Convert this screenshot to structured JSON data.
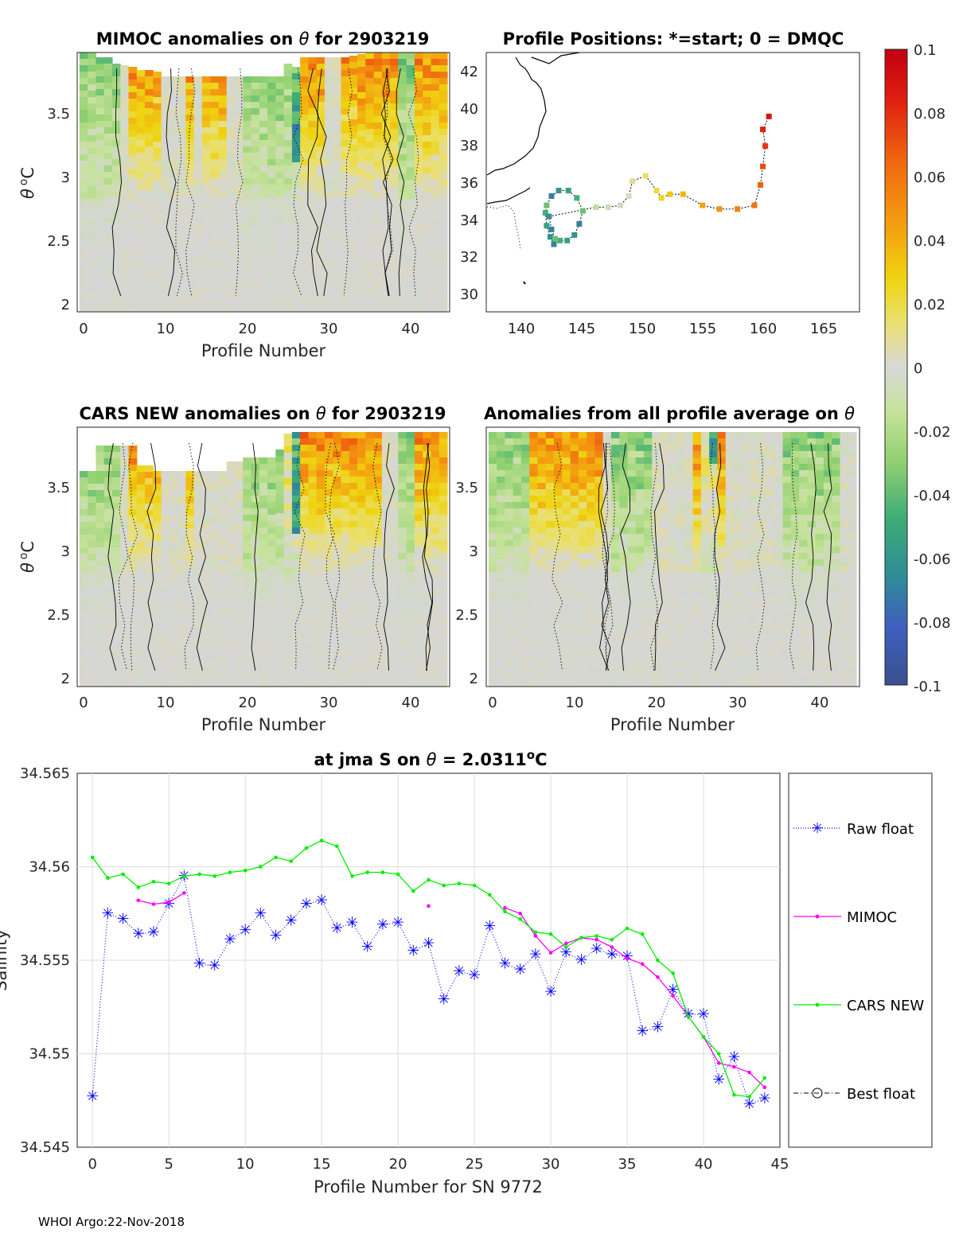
{
  "footer": "WHOI Argo:22-Nov-2018",
  "colors": {
    "raw": "#0000ff",
    "mimoc": "#ff00ff",
    "cars": "#00ee00",
    "best": "#000000",
    "grid": "#dddddd",
    "grey": "#d6d6d6"
  },
  "colorbar": {
    "ticks": [
      "0.1",
      "0.08",
      "0.06",
      "0.04",
      "0.02",
      "0",
      "-0.02",
      "-0.04",
      "-0.06",
      "-0.08",
      "-0.1"
    ]
  },
  "panels": {
    "mimoc": {
      "title_prefix": "MIMOC anomalies on ",
      "title_theta": "θ",
      "title_suffix": "  for 2903219",
      "ylabel_theta": "θ",
      "ylabel_unit": "C",
      "xlabel": "Profile Number",
      "xticks": [
        "0",
        "10",
        "20",
        "30",
        "40"
      ],
      "yticks": [
        "3.5",
        "3",
        "2.5",
        "2"
      ],
      "seed": 11
    },
    "cars": {
      "title_prefix": "CARS NEW anomalies on ",
      "title_theta": "θ",
      "title_suffix": " for 2903219",
      "ylabel_theta": "θ",
      "ylabel_unit": "C",
      "xlabel": "Profile Number",
      "xticks": [
        "0",
        "10",
        "20",
        "30",
        "40"
      ],
      "yticks": [
        "3.5",
        "3",
        "2.5",
        "2"
      ],
      "seed": 23
    },
    "avg": {
      "title_prefix": "Anomalies from all profile average on ",
      "title_theta": "θ",
      "title_suffix": "",
      "xlabel": "Profile Number",
      "xticks": [
        "0",
        "10",
        "20",
        "30",
        "40"
      ],
      "yticks": [
        "3.5",
        "3",
        "2.5",
        "2"
      ],
      "seed": 37
    },
    "map": {
      "title": "Profile Positions: *=start; 0 = DMQC",
      "xticks": [
        "140",
        "145",
        "150",
        "155",
        "160",
        "165"
      ],
      "yticks": [
        "42",
        "40",
        "38",
        "36",
        "34",
        "32",
        "30"
      ]
    }
  },
  "chart_data": [
    {
      "type": "line",
      "title": "at jma S on θ = 2.0311°C",
      "title_prefix": "at jma S on ",
      "title_theta": "θ",
      "title_mid": " = 2.0311",
      "title_sup": "o",
      "title_end": "C",
      "xlabel": "Profile Number for SN 9772",
      "ylabel": "Salinity",
      "xlim": [
        -1,
        45
      ],
      "ylim": [
        34.545,
        34.565
      ],
      "xticks": [
        "0",
        "5",
        "10",
        "15",
        "20",
        "25",
        "30",
        "35",
        "40",
        "45"
      ],
      "yticks": [
        "34.565",
        "34.56",
        "34.555",
        "34.55",
        "34.545"
      ],
      "legend": [
        "Raw float",
        "MIMOC",
        "CARS NEW",
        "Best float"
      ],
      "series": [
        {
          "name": "Raw float",
          "x": [
            0,
            1,
            2,
            3,
            4,
            5,
            6,
            7,
            8,
            9,
            10,
            11,
            12,
            13,
            14,
            15,
            16,
            17,
            18,
            19,
            20,
            21,
            22,
            23,
            24,
            25,
            26,
            27,
            28,
            29,
            30,
            31,
            32,
            33,
            34,
            35,
            36,
            37,
            38,
            39,
            40,
            41,
            42,
            43,
            44
          ],
          "values": [
            34.5477,
            34.5575,
            34.5572,
            34.5564,
            34.5565,
            34.558,
            34.5595,
            34.5548,
            34.5547,
            34.5561,
            34.5566,
            34.5575,
            34.5563,
            34.5571,
            34.558,
            34.5582,
            34.5567,
            34.557,
            34.5557,
            34.5569,
            34.557,
            34.5555,
            34.5559,
            34.5529,
            34.5544,
            34.5542,
            34.5568,
            34.5548,
            34.5545,
            34.5553,
            34.5533,
            34.5554,
            34.555,
            34.5556,
            34.5553,
            34.5552,
            34.5512,
            34.5514,
            34.5534,
            34.5521,
            34.5521,
            34.5486,
            34.5498,
            34.5473,
            34.5476
          ]
        },
        {
          "name": "MIMOC",
          "x": [
            3,
            4,
            5,
            6,
            22,
            27,
            28,
            29,
            30,
            31,
            32,
            33,
            34,
            35,
            36,
            37,
            38,
            39,
            40,
            41,
            42,
            43,
            44
          ],
          "values": [
            34.5582,
            34.558,
            34.5581,
            34.5586,
            34.5579,
            34.5578,
            34.5575,
            34.5563,
            34.5554,
            34.5559,
            34.5562,
            34.5561,
            34.5557,
            34.5551,
            34.5548,
            34.5541,
            34.5531,
            34.552,
            34.5509,
            34.5495,
            34.5493,
            34.549,
            34.5482
          ]
        },
        {
          "name": "CARS NEW",
          "x": [
            0,
            1,
            2,
            3,
            4,
            5,
            6,
            7,
            8,
            9,
            10,
            11,
            12,
            13,
            14,
            15,
            16,
            17,
            18,
            19,
            20,
            21,
            22,
            23,
            24,
            25,
            26,
            27,
            28,
            29,
            30,
            31,
            32,
            33,
            34,
            35,
            36,
            37,
            38,
            39,
            40,
            41,
            42,
            43,
            44
          ],
          "values": [
            34.5605,
            34.5594,
            34.5596,
            34.5589,
            34.5592,
            34.5591,
            34.5595,
            34.5596,
            34.5595,
            34.5597,
            34.5598,
            34.56,
            34.5605,
            34.5603,
            34.561,
            34.5614,
            34.5611,
            34.5595,
            34.5597,
            34.5597,
            34.5596,
            34.5587,
            34.5593,
            34.559,
            34.5591,
            34.559,
            34.5585,
            34.5576,
            34.5572,
            34.5565,
            34.5564,
            34.5557,
            34.5562,
            34.5563,
            34.5561,
            34.5567,
            34.5564,
            34.555,
            34.5543,
            34.552,
            34.5509,
            34.55,
            34.5478,
            34.5477,
            34.5487
          ]
        },
        {
          "name": "Best float",
          "x": [],
          "values": []
        }
      ]
    }
  ]
}
